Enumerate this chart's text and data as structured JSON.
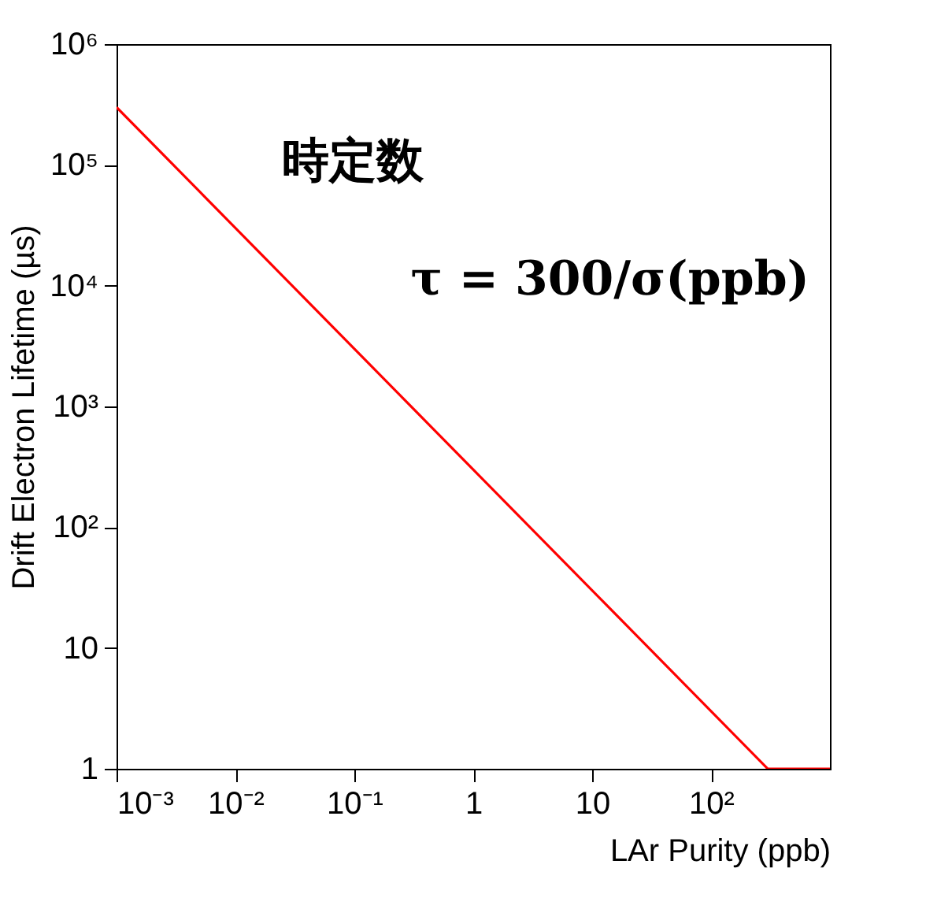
{
  "chart_data": {
    "type": "line",
    "xlabel": "LAr Purity (ppb)",
    "ylabel": "Drift Electron Lifetime (µs)",
    "x": [
      0.001,
      300,
      1000
    ],
    "series": [
      {
        "color": "#ff0000",
        "values": [
          300000,
          1,
          1
        ]
      }
    ],
    "log": "xy",
    "xlim": [
      0.001,
      1000
    ],
    "ylim": [
      1,
      1000000
    ],
    "xticks": [
      {
        "value": 0.001,
        "label": "10⁻³"
      },
      {
        "value": 0.01,
        "label": "10⁻²"
      },
      {
        "value": 0.1,
        "label": "10⁻¹"
      },
      1,
      10,
      {
        "value": 100,
        "label": "10²"
      }
    ],
    "yticks": [
      1,
      10,
      {
        "value": 100,
        "label": "10²"
      },
      {
        "value": 1000,
        "label": "10³"
      },
      {
        "value": 10000,
        "label": "10⁴"
      },
      {
        "value": 100000,
        "label": "10⁵"
      },
      {
        "value": 1000000,
        "label": "10⁶"
      }
    ],
    "annotations": [
      "時定数",
      "τ = 300/σ(ppb)"
    ],
    "grid": false,
    "marker": "none",
    "line_style": "solid"
  }
}
